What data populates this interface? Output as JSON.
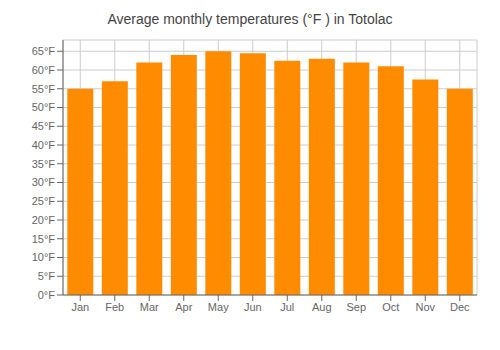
{
  "chart_data": {
    "type": "bar",
    "title": "Average monthly temperatures (°F ) in Totolac",
    "categories": [
      "Jan",
      "Feb",
      "Mar",
      "Apr",
      "May",
      "Jun",
      "Jul",
      "Aug",
      "Sep",
      "Oct",
      "Nov",
      "Dec"
    ],
    "values": [
      55,
      57,
      62,
      64,
      65,
      64.5,
      62.5,
      63,
      62,
      61,
      57.5,
      55
    ],
    "color": "#FF8C00",
    "ylim": [
      0,
      68
    ],
    "yticks": [
      {
        "value": 0,
        "label": "0°F"
      },
      {
        "value": 5,
        "label": "5°F"
      },
      {
        "value": 10,
        "label": "10°F"
      },
      {
        "value": 15,
        "label": "15°F"
      },
      {
        "value": 20,
        "label": "20°F"
      },
      {
        "value": 25,
        "label": "25°F"
      },
      {
        "value": 30,
        "label": "30°F"
      },
      {
        "value": 35,
        "label": "35°F"
      },
      {
        "value": 40,
        "label": "40°F"
      },
      {
        "value": 45,
        "label": "45°F"
      },
      {
        "value": 50,
        "label": "50°F"
      },
      {
        "value": 55,
        "label": "55°F"
      },
      {
        "value": 60,
        "label": "60°F"
      },
      {
        "value": 65,
        "label": "65°F"
      }
    ],
    "grid": true
  }
}
